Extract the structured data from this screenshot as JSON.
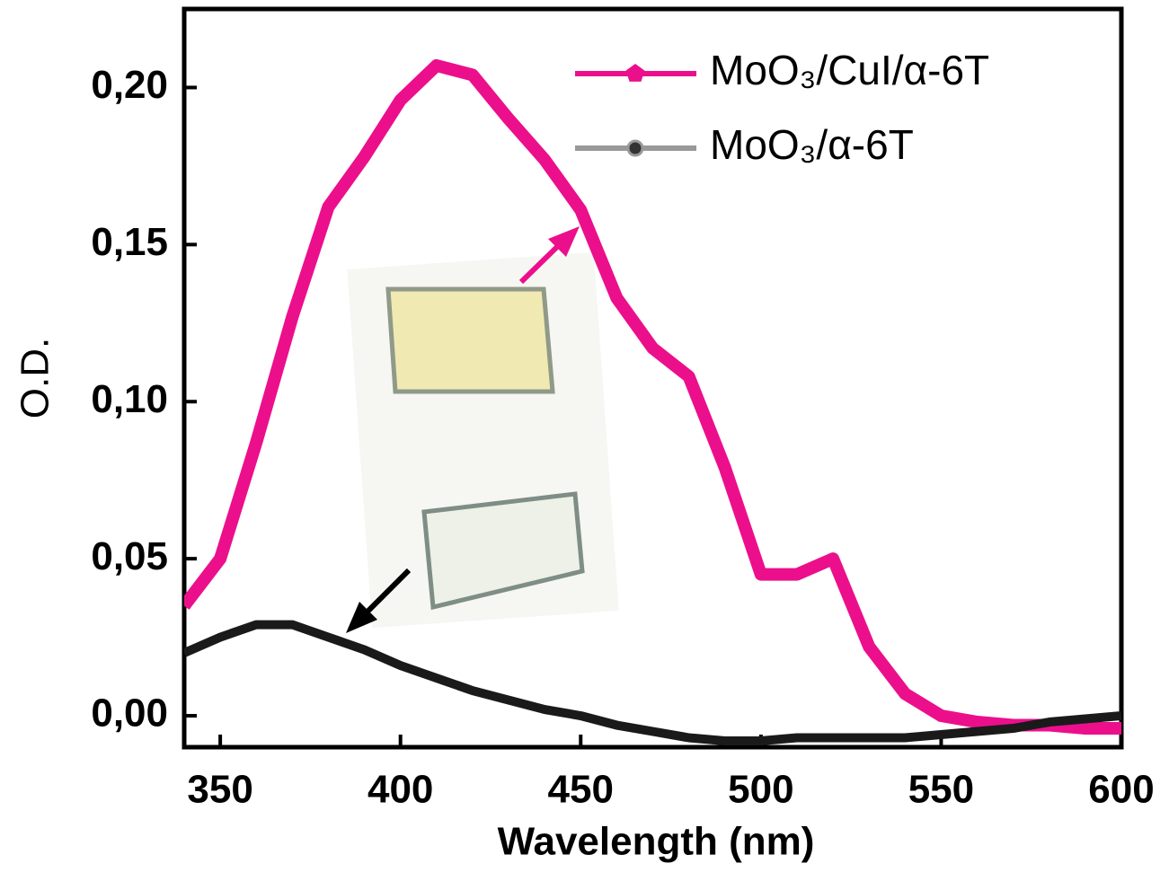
{
  "chart_data": {
    "type": "line",
    "x_label": "Wavelength (nm)",
    "y_label": "O.D.",
    "x": [
      340,
      350,
      360,
      370,
      380,
      390,
      400,
      410,
      420,
      430,
      440,
      450,
      460,
      470,
      480,
      490,
      500,
      510,
      520,
      530,
      540,
      550,
      560,
      570,
      580,
      590,
      600
    ],
    "series": [
      {
        "name": "MoO₃/CuI/α-6T",
        "color": "#ec0f8c",
        "values": [
          0.035,
          0.05,
          0.087,
          0.127,
          0.162,
          0.178,
          0.196,
          0.207,
          0.204,
          0.19,
          0.177,
          0.161,
          0.133,
          0.117,
          0.108,
          0.079,
          0.045,
          0.045,
          0.05,
          0.022,
          0.007,
          0.0,
          -0.002,
          -0.003,
          -0.003,
          -0.004,
          -0.004
        ]
      },
      {
        "name": "MoO₃/α-6T",
        "color": "#1a1a1a",
        "values": [
          0.02,
          0.025,
          0.029,
          0.029,
          0.025,
          0.021,
          0.016,
          0.012,
          0.008,
          0.005,
          0.002,
          0.0,
          -0.003,
          -0.005,
          -0.007,
          -0.008,
          -0.008,
          -0.007,
          -0.007,
          -0.007,
          -0.007,
          -0.006,
          -0.005,
          -0.004,
          -0.002,
          -0.001,
          0.0
        ]
      }
    ],
    "xlim": [
      340,
      600
    ],
    "xticks": [
      350,
      400,
      450,
      500,
      550,
      600
    ],
    "ylim": [
      -0.01,
      0.225
    ],
    "yticks": [
      {
        "value": 0,
        "label": "0,00"
      },
      {
        "value": 0.05,
        "label": "0,05"
      },
      {
        "value": 0.1,
        "label": "0,10"
      },
      {
        "value": 0.15,
        "label": "0,15"
      },
      {
        "value": 0.2,
        "label": "0,20"
      }
    ],
    "legend": "upper right",
    "grid": false
  }
}
